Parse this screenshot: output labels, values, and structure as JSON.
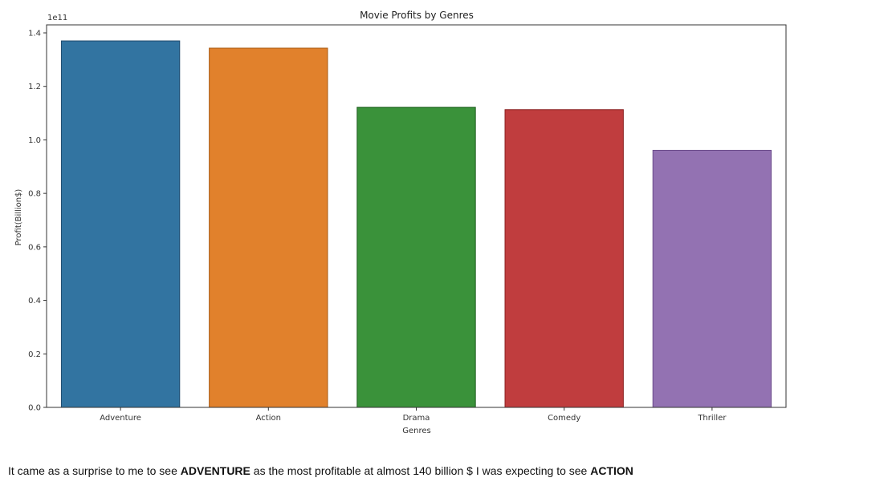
{
  "chart_data": {
    "type": "bar",
    "title": "Movie Profits by Genres",
    "xlabel": "Genres",
    "ylabel": "Profit(Billion$)",
    "offset_label": "1e11",
    "categories": [
      "Adventure",
      "Action",
      "Drama",
      "Comedy",
      "Thriller"
    ],
    "values": [
      1.37,
      1.343,
      1.122,
      1.113,
      0.961
    ],
    "value_scale": "1e11",
    "ylim": [
      0,
      1.43
    ],
    "yticks": [
      0.0,
      0.2,
      0.4,
      0.6,
      0.8,
      1.0,
      1.2,
      1.4
    ],
    "ytick_labels": [
      "0.0",
      "0.2",
      "0.4",
      "0.6",
      "0.8",
      "1.0",
      "1.2",
      "1.4"
    ],
    "grid": false,
    "colors": [
      "#3274a1",
      "#e1812c",
      "#3a923a",
      "#c03d3e",
      "#9372b2"
    ],
    "edge_colors": [
      "#1f4b6e",
      "#a85a12",
      "#1f5c1f",
      "#8a1f20",
      "#6a4a8a"
    ]
  },
  "caption": {
    "text_1": "It came as a surprise to me to see ",
    "bold_1": "ADVENTURE",
    "text_2": " as the most profitable at almost 140 billion $ I was expecting to see ",
    "bold_2": "ACTION"
  }
}
